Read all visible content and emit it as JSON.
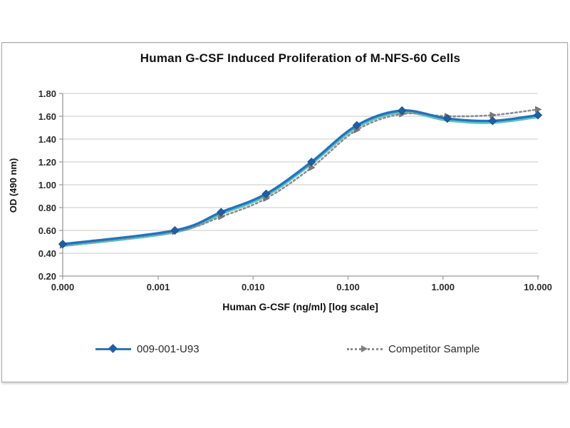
{
  "chart_data": {
    "type": "line",
    "title": "Human G-CSF Induced Proliferation of M-NFS-60 Cells",
    "xlabel": "Human G-CSF (ng/ml) [log scale]",
    "ylabel": "OD (490 nm)",
    "x_scale": "log-with-zero",
    "x_tick_labels": [
      "0.000",
      "0.001",
      "0.010",
      "0.100",
      "1.000",
      "10.000"
    ],
    "y_ticks": [
      0.2,
      0.4,
      0.6,
      0.8,
      1.0,
      1.2,
      1.4,
      1.6,
      1.8
    ],
    "y_tick_labels": [
      "0.20",
      "0.40",
      "0.60",
      "0.80",
      "1.00",
      "1.20",
      "1.40",
      "1.60",
      "1.80"
    ],
    "ylim": [
      0.2,
      1.8
    ],
    "grid": "horizontal",
    "legend_position": "bottom",
    "x": [
      0,
      0.0015,
      0.0046,
      0.0137,
      0.0412,
      0.1235,
      0.3704,
      1.1111,
      3.3333,
      10
    ],
    "series": [
      {
        "name": "009-001-U93",
        "line_style": "solid",
        "marker": "diamond",
        "color": "#2273be",
        "glow_color": "#35b4ac",
        "marker_color": "#1f5fa9",
        "values": [
          0.48,
          0.6,
          0.76,
          0.92,
          1.2,
          1.52,
          1.65,
          1.58,
          1.56,
          1.61
        ]
      },
      {
        "name": "Competitor Sample",
        "line_style": "dotted",
        "marker": "triangle-right",
        "color": "#8c8c8c",
        "marker_color": "#7a7a7a",
        "values": [
          0.47,
          0.59,
          0.72,
          0.88,
          1.15,
          1.48,
          1.62,
          1.6,
          1.61,
          1.66
        ]
      }
    ],
    "colors": {
      "gridline": "#c8c8c8",
      "axis": "#999999",
      "tick_text": "#2b2b2b"
    }
  }
}
